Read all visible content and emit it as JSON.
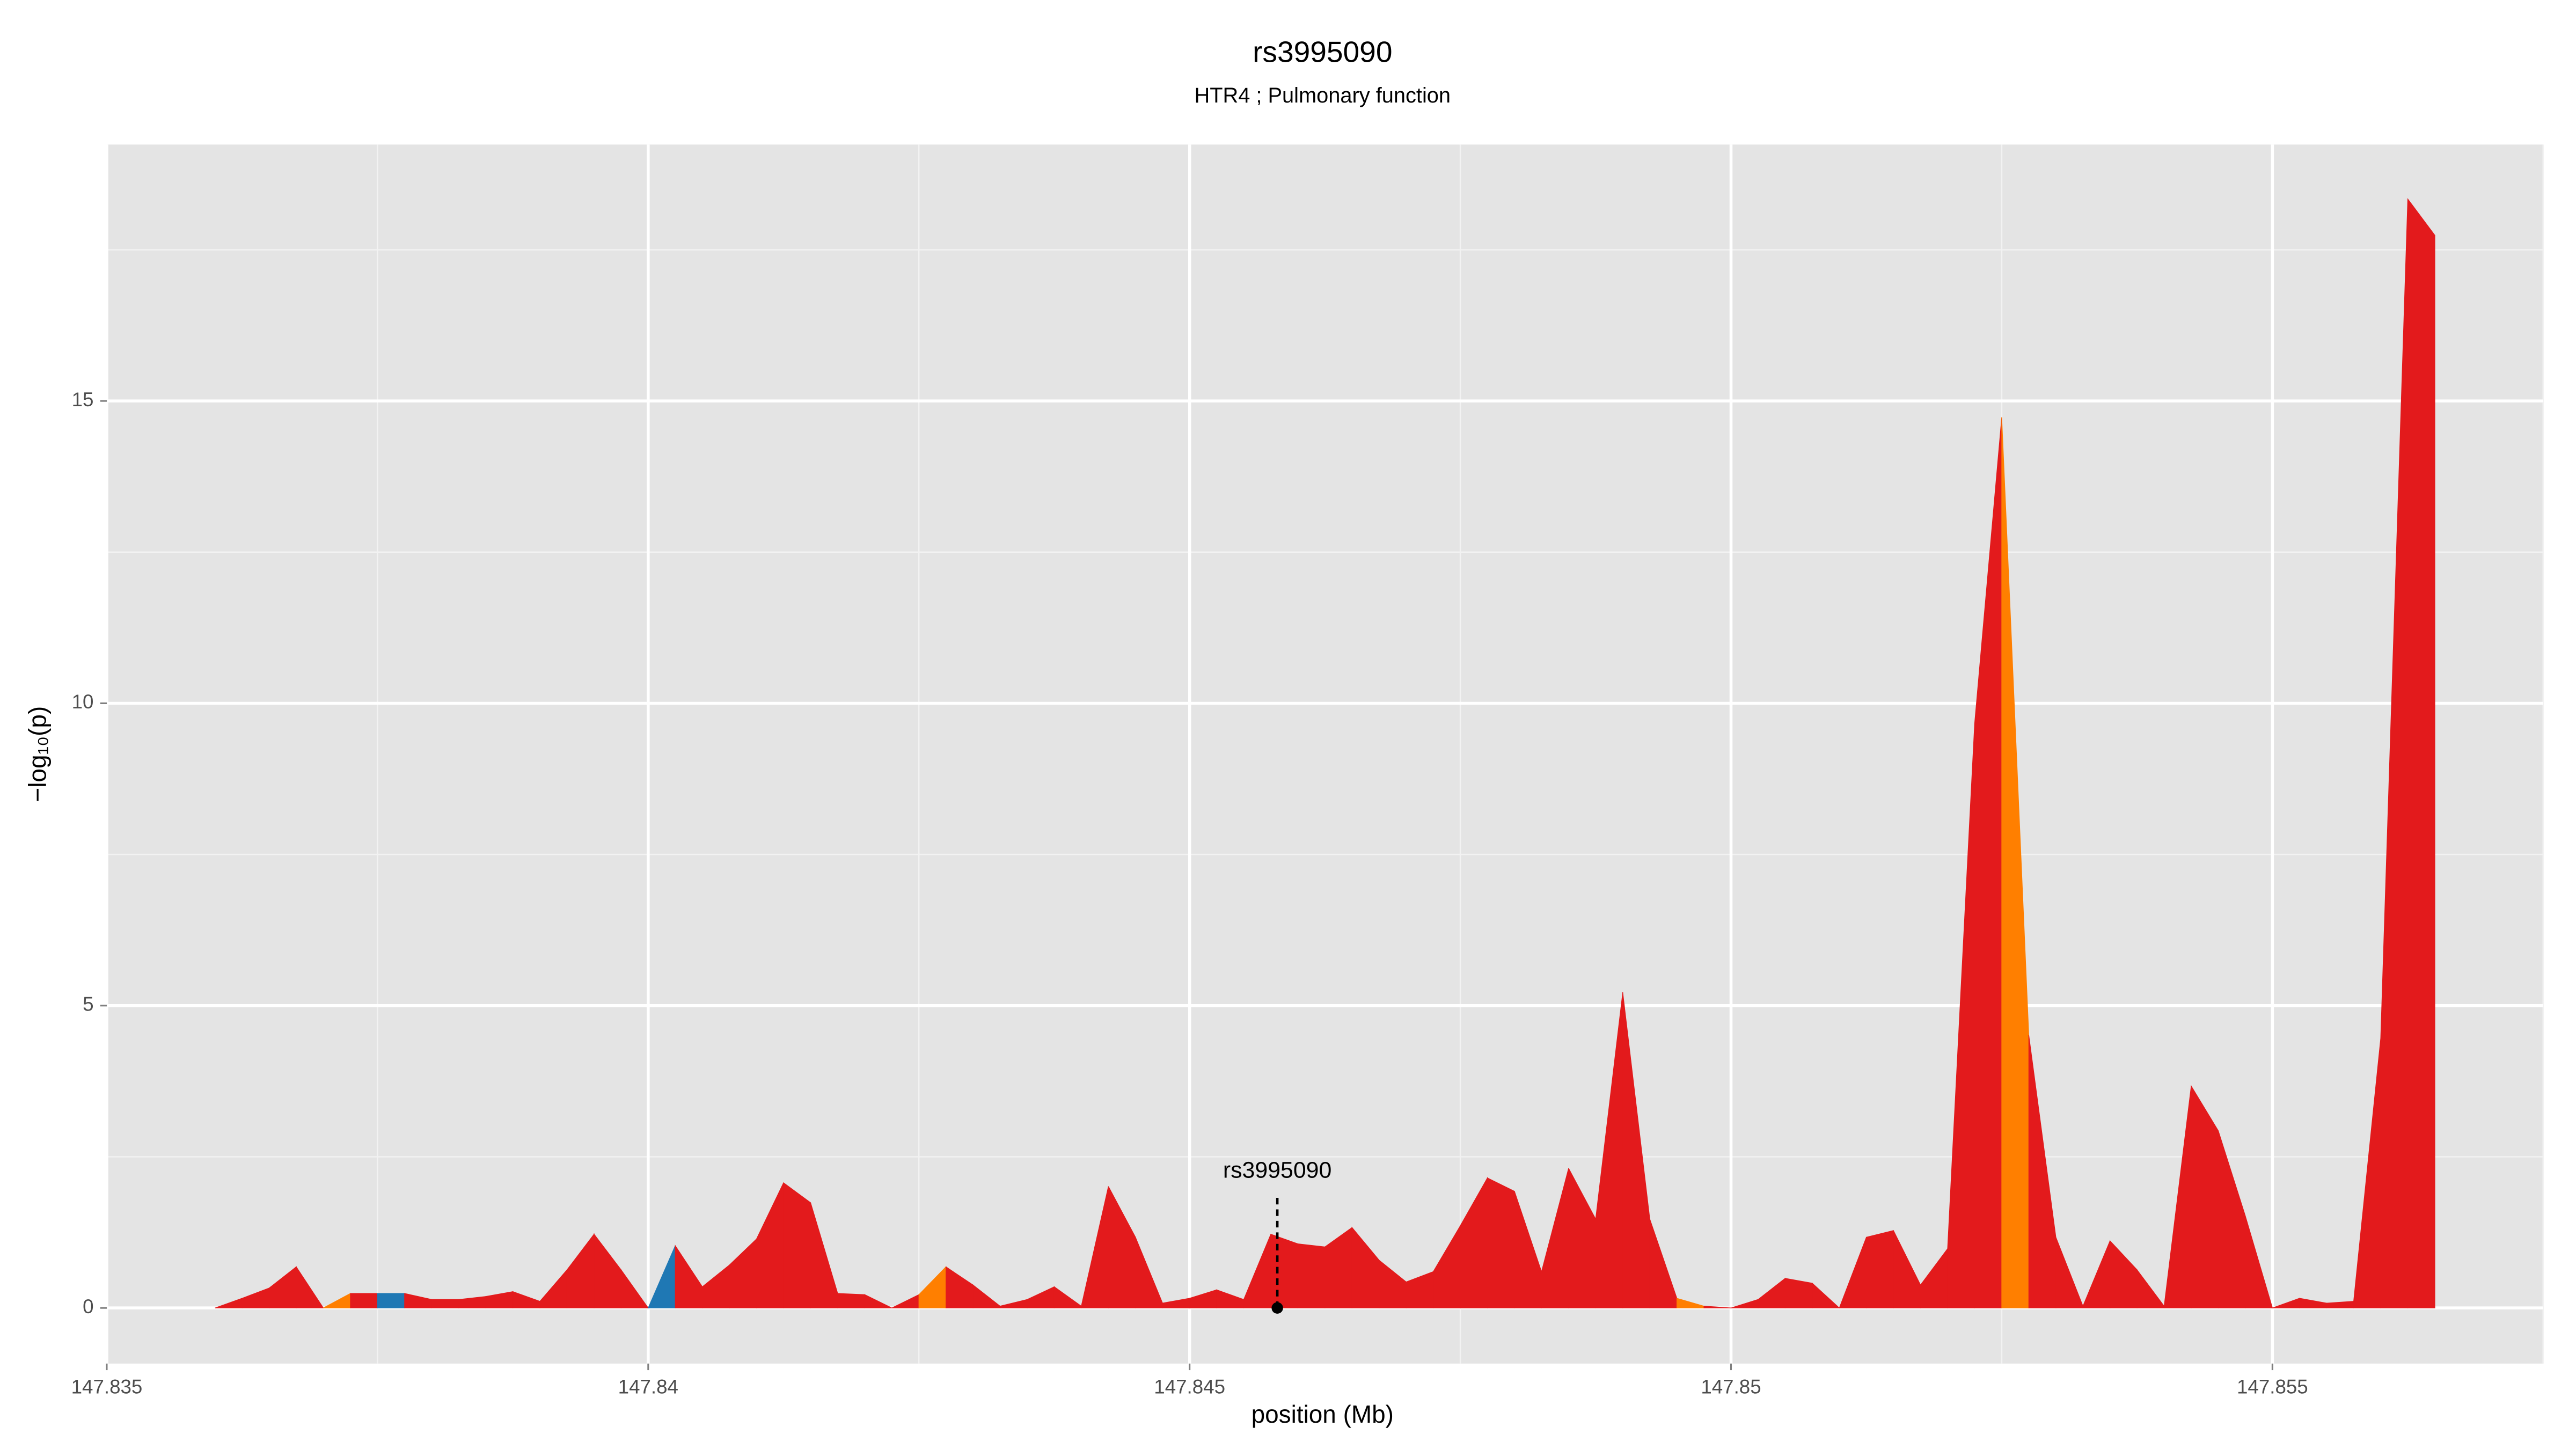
{
  "chart_data": {
    "type": "area",
    "title": "rs3995090",
    "subtitle": "HTR4 ; Pulmonary function",
    "xlabel": "position (Mb)",
    "ylabel": "−log₁₀(p)",
    "xlim": [
      147.835,
      147.8575
    ],
    "ylim": [
      -0.92,
      19.24
    ],
    "xticks": [
      147.835,
      147.84,
      147.845,
      147.85,
      147.855
    ],
    "xminorticks": [
      147.8375,
      147.8425,
      147.8475,
      147.8525,
      147.8575
    ],
    "yticks": [
      0,
      5,
      10,
      15
    ],
    "yminorticks": [
      2.5,
      7.5,
      12.5,
      17.5
    ],
    "grid": true,
    "panel_color": "#e4e4e4",
    "series": [
      {
        "x": [
          147.836,
          147.83625,
          147.8365,
          147.83675,
          147.837,
          147.83725,
          147.8375,
          147.83775,
          147.838,
          147.83825,
          147.8385,
          147.83875,
          147.839,
          147.83925,
          147.8395,
          147.83975,
          147.84,
          147.84025,
          147.8405,
          147.84075,
          147.841,
          147.84125,
          147.8415,
          147.84175,
          147.842,
          147.84225,
          147.8425,
          147.84275,
          147.843,
          147.84325,
          147.8435,
          147.84375,
          147.844,
          147.84425,
          147.8445,
          147.84475,
          147.845,
          147.84525,
          147.8455,
          147.84575,
          147.846,
          147.84625,
          147.8465,
          147.84675,
          147.847,
          147.84725,
          147.8475,
          147.84775,
          147.848,
          147.84825,
          147.8485,
          147.84875,
          147.849,
          147.84925,
          147.8495,
          147.84975,
          147.85,
          147.85025,
          147.8505,
          147.85075,
          147.851,
          147.85125,
          147.8515,
          147.85175,
          147.852,
          147.85225,
          147.8525,
          147.85275,
          147.853,
          147.85325,
          147.8535,
          147.85375,
          147.854,
          147.85425,
          147.8545,
          147.85475,
          147.855,
          147.85525,
          147.8555,
          147.85575,
          147.856,
          147.85625,
          147.8565
        ],
        "values": [
          0,
          0.16,
          0.33,
          0.68,
          0,
          0.24,
          0.24,
          0.24,
          0.14,
          0.14,
          0.19,
          0.27,
          0.11,
          0.63,
          1.22,
          0.63,
          0,
          1.03,
          0.35,
          0.71,
          1.14,
          2.07,
          1.74,
          0.24,
          0.22,
          0,
          0.22,
          0.68,
          0.38,
          0.03,
          0.14,
          0.35,
          0.03,
          2.01,
          1.17,
          0.08,
          0.16,
          0.3,
          0.14,
          1.22,
          1.06,
          1.01,
          1.33,
          0.79,
          0.43,
          0.6,
          1.36,
          2.15,
          1.93,
          0.6,
          2.31,
          1.47,
          5.22,
          1.47,
          0.16,
          0.03,
          0,
          0.14,
          0.49,
          0.41,
          0,
          1.17,
          1.28,
          0.38,
          0.98,
          9.67,
          14.73,
          4.51,
          1.17,
          0.03,
          1.11,
          0.63,
          0.03,
          3.67,
          2.93,
          1.52,
          0,
          0.16,
          0.08,
          0.11,
          4.46,
          18.34,
          17.74
        ],
        "segment_colors": [
          "#e31a1c",
          "#e31a1c",
          "#e31a1c",
          "#e31a1c",
          "#ff7f00",
          "#e31a1c",
          "#1f78b4",
          "#e31a1c",
          "#e31a1c",
          "#e31a1c",
          "#e31a1c",
          "#e31a1c",
          "#e31a1c",
          "#e31a1c",
          "#e31a1c",
          "#e31a1c",
          "#1f78b4",
          "#e31a1c",
          "#e31a1c",
          "#e31a1c",
          "#e31a1c",
          "#e31a1c",
          "#e31a1c",
          "#e31a1c",
          "#e31a1c",
          "#e31a1c",
          "#ff7f00",
          "#e31a1c",
          "#e31a1c",
          "#e31a1c",
          "#e31a1c",
          "#e31a1c",
          "#e31a1c",
          "#e31a1c",
          "#e31a1c",
          "#e31a1c",
          "#e31a1c",
          "#e31a1c",
          "#e31a1c",
          "#e31a1c",
          "#e31a1c",
          "#e31a1c",
          "#e31a1c",
          "#e31a1c",
          "#e31a1c",
          "#e31a1c",
          "#e31a1c",
          "#e31a1c",
          "#e31a1c",
          "#e31a1c",
          "#e31a1c",
          "#e31a1c",
          "#e31a1c",
          "#e31a1c",
          "#ff7f00",
          "#e31a1c",
          "#e31a1c",
          "#e31a1c",
          "#e31a1c",
          "#e31a1c",
          "#e31a1c",
          "#e31a1c",
          "#e31a1c",
          "#e31a1c",
          "#e31a1c",
          "#e31a1c",
          "#ff7f00",
          "#e31a1c",
          "#e31a1c",
          "#e31a1c",
          "#e31a1c",
          "#e31a1c",
          "#e31a1c",
          "#e31a1c",
          "#e31a1c",
          "#e31a1c",
          "#e31a1c",
          "#e31a1c",
          "#e31a1c",
          "#e31a1c",
          "#e31a1c",
          "#e31a1c"
        ]
      }
    ],
    "annotation": {
      "label": "rs3995090",
      "x": 147.84581,
      "y": 0
    }
  }
}
